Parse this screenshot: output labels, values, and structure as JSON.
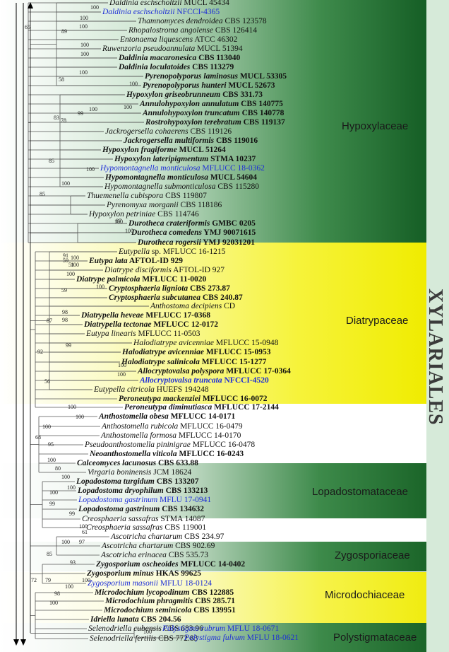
{
  "order_label": "XYLARIALES",
  "families": {
    "hypoxylaceae": "Hypoxylaceae",
    "diatrypaceae": "Diatrypaceae",
    "lopadostomataceae": "Lopadostomataceae",
    "zygosporiaceae": "Zygosporiaceae",
    "microdochiaceae": "Microdochiaceae",
    "polystigmataceae": "Polystigmataceae"
  },
  "colors": {
    "hypoxylaceae_green": "#1e6e2e",
    "diatrypaceae_yellow": "#f4f000",
    "zygosporiaceae_green": "#2f7a3a",
    "microdochiaceae_yellow": "#f2ee10",
    "polystigmataceae_green": "#1f6b30",
    "blue_taxon": "#1f2fd6",
    "order_bar": "#d6ead9"
  },
  "taxa": [
    {
      "sp": "Daldinia eschscholtzii",
      "st": "MUCL 45434",
      "bold": false,
      "blue": false
    },
    {
      "sp": "Daldinia eschscholtzii",
      "st": "NFCCI-4365",
      "bold": false,
      "blue": true
    },
    {
      "sp": "Thamnomyces dendroidea",
      "st": "CBS 123578",
      "bold": false,
      "blue": false
    },
    {
      "sp": "Rhopalostroma angolense",
      "st": "CBS 126414",
      "bold": false,
      "blue": false
    },
    {
      "sp": "Entonaema liquescens",
      "st": "ATCC 46302",
      "bold": false,
      "blue": false
    },
    {
      "sp": "Ruwenzoria pseudoannulata",
      "st": "MUCL 51394",
      "bold": false,
      "blue": false
    },
    {
      "sp": "Daldinia macaronesica",
      "st": "CBS 113040",
      "bold": true,
      "blue": false
    },
    {
      "sp": "Daldinia loculatoides",
      "st": "CBS 113279",
      "bold": true,
      "blue": false
    },
    {
      "sp": "Pyrenopolyporus laminosus",
      "st": "MUCL 53305",
      "bold": true,
      "blue": false
    },
    {
      "sp": "Pyrenopolyporus hunteri",
      "st": "MUCL 52673",
      "bold": true,
      "blue": false
    },
    {
      "sp": "Hypoxylon griseobrunneum",
      "st": "CBS 331.73",
      "bold": true,
      "blue": false
    },
    {
      "sp": "Annulohypoxylon annulatum",
      "st": "CBS 140775",
      "bold": true,
      "blue": false
    },
    {
      "sp": "Annulohypoxylon truncatum",
      "st": "CBS 140778",
      "bold": true,
      "blue": false
    },
    {
      "sp": "Rostrohypoxylon terebratum",
      "st": "CBS 119137",
      "bold": true,
      "blue": false
    },
    {
      "sp": "Jackrogersella cohaerens",
      "st": "CBS 119126",
      "bold": false,
      "blue": false
    },
    {
      "sp": "Jackrogersella multiformis",
      "st": "CBS 119016",
      "bold": true,
      "blue": false
    },
    {
      "sp": "Hypoxylon fragiforme",
      "st": "MUCL 51264",
      "bold": true,
      "blue": false
    },
    {
      "sp": "Hypoxylon lateripigmentum",
      "st": "STMA 10237",
      "bold": true,
      "blue": false
    },
    {
      "sp": "Hypomontagnella monticulosa",
      "st": "MFLUCC 18-0362",
      "bold": false,
      "blue": true
    },
    {
      "sp": "Hypomontagnella monticulosa",
      "st": "MUCL 54604",
      "bold": true,
      "blue": false
    },
    {
      "sp": "Hypomontagnella submonticulosa",
      "st": "CBS 115280",
      "bold": false,
      "blue": false
    },
    {
      "sp": "Thuemenella cubispora",
      "st": "CBS 119807",
      "bold": false,
      "blue": false
    },
    {
      "sp": "Pyrenomyxa morganii",
      "st": "CBS 118186",
      "bold": false,
      "blue": false
    },
    {
      "sp": "Hypoxylon petriniae",
      "st": "CBS 114746",
      "bold": false,
      "blue": false
    },
    {
      "sp": "Durotheca crateriformis",
      "st": "GMBC 0205",
      "bold": true,
      "blue": false
    },
    {
      "sp": "Durotheca comedens",
      "st": "YMJ 90071615",
      "bold": true,
      "blue": false
    },
    {
      "sp": "Durotheca rogersii",
      "st": "YMJ 92031201",
      "bold": true,
      "blue": false
    },
    {
      "sp": "Eutypella",
      "st": "sp. MFLUCC 16-1215",
      "bold": false,
      "blue": false
    },
    {
      "sp": "Eutypa lata",
      "st": "AFTOL-ID 929",
      "bold": true,
      "blue": false
    },
    {
      "sp": "Diatrype disciformis",
      "st": "AFTOL-ID 927",
      "bold": false,
      "blue": false
    },
    {
      "sp": "Diatrype palmicola",
      "st": "MFLUCC 11-0020",
      "bold": true,
      "blue": false
    },
    {
      "sp": "Cryptosphaeria ligniota",
      "st": "CBS 273.87",
      "bold": true,
      "blue": false
    },
    {
      "sp": "Cryptosphaeria subcutanea",
      "st": "CBS 240.87",
      "bold": true,
      "blue": false
    },
    {
      "sp": "Anthostoma decipiens",
      "st": "CD",
      "bold": false,
      "blue": false
    },
    {
      "sp": "Diatrypella heveae",
      "st": "MFLUCC 17-0368",
      "bold": true,
      "blue": false
    },
    {
      "sp": "Diatrypella tectonae",
      "st": "MFLUCC 12-0172",
      "bold": true,
      "blue": false
    },
    {
      "sp": "Eutypa linearis",
      "st": "MFLUCC 11-0503",
      "bold": false,
      "blue": false
    },
    {
      "sp": "Halodiatrype avicenniae",
      "st": "MFLUCC 15-0948",
      "bold": false,
      "blue": false
    },
    {
      "sp": "Halodiatrype avicenniae",
      "st": "MFLUCC 15-0953",
      "bold": true,
      "blue": false
    },
    {
      "sp": "Halodiatrype salinicola",
      "st": "MFLUCC 15-1277",
      "bold": true,
      "blue": false
    },
    {
      "sp": "Allocryptovalsa polyspora",
      "st": "MFLUCC 17-0364",
      "bold": true,
      "blue": false
    },
    {
      "sp": "Allocryptovalsa truncata",
      "st": "NFCCI-4520",
      "bold": true,
      "blue": true
    },
    {
      "sp": "Eutypella citricola",
      "st": "HUEFS 194248",
      "bold": false,
      "blue": false
    },
    {
      "sp": "Peroneutypa mackenziei",
      "st": "MFLUCC 16-0072",
      "bold": true,
      "blue": false
    },
    {
      "sp": "Peroneutypa diminutiasca",
      "st": "MFLUCC 17-2144",
      "bold": true,
      "blue": false
    },
    {
      "sp": "Anthostomella obesa",
      "st": "MFLUCC 14-0171",
      "bold": true,
      "blue": false
    },
    {
      "sp": "Anthostomella rubicola",
      "st": "MFLUCC 16-0479",
      "bold": false,
      "blue": false
    },
    {
      "sp": "Anthostomella formosa",
      "st": "MFLUCC 14-0170",
      "bold": false,
      "blue": false
    },
    {
      "sp": "Pseudoanthostomella pininigrae",
      "st": "MFLUCC 16-0478",
      "bold": false,
      "blue": false
    },
    {
      "sp": "Neoanthostomella viticola",
      "st": "MFLUCC 16-0243",
      "bold": true,
      "blue": false
    },
    {
      "sp": "Calceomyces lacunosus",
      "st": "CBS 633.88",
      "bold": true,
      "blue": false
    },
    {
      "sp": "Virgaria boninensis",
      "st": "JCM 18624",
      "bold": false,
      "blue": false
    },
    {
      "sp": "Lopadostoma turgidum",
      "st": "CBS 133207",
      "bold": true,
      "blue": false
    },
    {
      "sp": "Lopadostoma dryophilum",
      "st": "CBS 133213",
      "bold": true,
      "blue": false
    },
    {
      "sp": "Lopadostoma gastrinum",
      "st": "MFLU 17-0941",
      "bold": false,
      "blue": true
    },
    {
      "sp": "Lopadostoma gastrinum",
      "st": "CBS 134632",
      "bold": true,
      "blue": false
    },
    {
      "sp": "Creosphaeria sassafras",
      "st": "STMA 14087",
      "bold": false,
      "blue": false
    },
    {
      "sp": "Creosphaeria sassafras",
      "st": "CBS 119001",
      "bold": false,
      "blue": false
    },
    {
      "sp": "Ascotricha chartarum",
      "st": "CBS 234.97",
      "bold": false,
      "blue": false
    },
    {
      "sp": "Ascotricha chartarum",
      "st": "CBS 902.69",
      "bold": false,
      "blue": false
    },
    {
      "sp": "Ascotricha erinacea",
      "st": "CBS 535.73",
      "bold": false,
      "blue": false
    },
    {
      "sp": "Zygosporium oscheoides",
      "st": "MFLUCC 14-0402",
      "bold": true,
      "blue": false
    },
    {
      "sp": "Zygosporium minus",
      "st": "HKAS 99625",
      "bold": true,
      "blue": false
    },
    {
      "sp": "Zygosporium masonii",
      "st": "MFLU 18-0124",
      "bold": false,
      "blue": true
    },
    {
      "sp": "Microdochium lycopodinum",
      "st": "CBS 122885",
      "bold": true,
      "blue": false
    },
    {
      "sp": "Microdochium phragmitis",
      "st": "CBS 285.71",
      "bold": true,
      "blue": false
    },
    {
      "sp": "Microdochium seminicola",
      "st": "CBS 139951",
      "bold": true,
      "blue": false
    },
    {
      "sp": "Idriella lunata",
      "st": "CBS 204.56",
      "bold": true,
      "blue": false
    },
    {
      "sp": "Selenodriella cubensis",
      "st": "CBS 683.96",
      "bold": false,
      "blue": false
    },
    {
      "sp": "Selenodriella fertilis",
      "st": "CBS 772.83",
      "bold": false,
      "blue": false
    },
    {
      "sp": "Polystigma rubrum",
      "st": "MFLU 18-0671",
      "bold": false,
      "blue": true
    },
    {
      "sp": "Polystigma fulvum",
      "st": "MFLU 18-0621",
      "bold": false,
      "blue": true
    }
  ],
  "supports": [
    "65",
    "100",
    "100",
    "89",
    "100",
    "100",
    "100",
    "100",
    "58",
    "100",
    "100",
    "100",
    "99",
    "78",
    "83",
    "85",
    "100",
    "100",
    "85",
    "100",
    "100",
    "87",
    "100",
    "100",
    "59",
    "91",
    "51",
    "100",
    "59",
    "100",
    "98",
    "98",
    "87",
    "99",
    "100",
    "100",
    "92",
    "56",
    "100",
    "100",
    "100",
    "68",
    "95",
    "100",
    "80",
    "100",
    "100",
    "100",
    "99",
    "99",
    "100",
    "61",
    "97",
    "100",
    "85",
    "93",
    "100",
    "100",
    "98",
    "72",
    "100",
    "79",
    "100",
    "100"
  ]
}
